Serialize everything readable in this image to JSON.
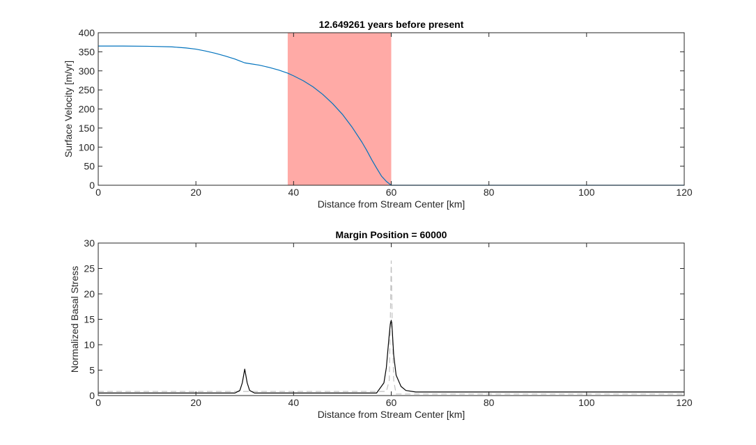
{
  "chart_data": [
    {
      "type": "line",
      "title": "12.649261 years before present",
      "xlabel": "Distance from Stream Center [km]",
      "ylabel": "Surface Velocity [m/yr]",
      "xlim": [
        0,
        120
      ],
      "ylim": [
        0,
        400
      ],
      "xticks": [
        0,
        20,
        40,
        60,
        80,
        100,
        120
      ],
      "yticks": [
        0,
        50,
        100,
        150,
        200,
        250,
        300,
        350,
        400
      ],
      "grid": false,
      "shaded_region": {
        "x": [
          38.8,
          60
        ],
        "color": "#ffaaa6"
      },
      "series": [
        {
          "color": "#0072bd",
          "style": "solid",
          "x": [
            0,
            5,
            10,
            15,
            18,
            20,
            22,
            24,
            26,
            28,
            29,
            30,
            31,
            33,
            35,
            37,
            38.8,
            40,
            42,
            44,
            46,
            48,
            50,
            52,
            54,
            55,
            56,
            57,
            58,
            59,
            60,
            62,
            70,
            80,
            90,
            100,
            110,
            120
          ],
          "y": [
            365,
            365,
            364.5,
            363,
            360,
            357,
            352,
            346,
            339,
            331,
            326,
            321,
            319,
            315,
            309,
            302,
            294,
            287,
            274,
            258,
            238,
            214,
            186,
            152,
            113,
            91,
            67,
            45,
            24,
            10,
            0,
            0,
            0,
            0,
            0,
            0,
            0,
            0
          ]
        }
      ]
    },
    {
      "type": "line",
      "title": "Margin Position = 60000",
      "xlabel": "Distance from Stream Center [km]",
      "ylabel": "Normalized Basal Stress",
      "xlim": [
        0,
        120
      ],
      "ylim": [
        0,
        30
      ],
      "xticks": [
        0,
        20,
        40,
        60,
        80,
        100,
        120
      ],
      "yticks": [
        0,
        5,
        10,
        15,
        20,
        25,
        30
      ],
      "grid": false,
      "series": [
        {
          "color": "#c0c0c0",
          "style": "dashed",
          "x": [
            0,
            59,
            59.6,
            59.8,
            60,
            60.2,
            60.5,
            61,
            120
          ],
          "y": [
            0.8,
            0.8,
            3,
            14,
            26.5,
            14,
            3,
            0.3,
            0.3
          ]
        },
        {
          "color": "#000000",
          "style": "solid",
          "x": [
            0,
            28,
            29,
            29.5,
            30,
            30.5,
            31,
            32,
            57,
            58.5,
            59,
            59.5,
            59.8,
            60,
            60.2,
            60.5,
            61,
            62,
            63,
            65,
            120
          ],
          "y": [
            0.5,
            0.5,
            1.0,
            2.5,
            5.2,
            2.5,
            1.0,
            0.5,
            0.5,
            2.5,
            5.5,
            11,
            14,
            14.8,
            13,
            8,
            4,
            1.8,
            1.0,
            0.7,
            0.7
          ]
        }
      ]
    }
  ]
}
